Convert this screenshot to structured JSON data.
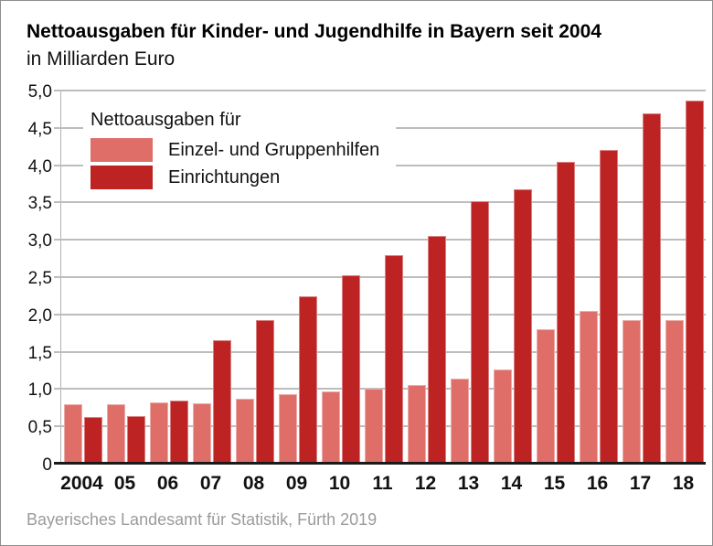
{
  "header": {
    "title": "Nettoausgaben für Kinder- und Jugendhilfe in Bayern seit 2004",
    "subtitle": "in Milliarden Euro"
  },
  "legend": {
    "title": "Nettoausgaben für",
    "items": [
      {
        "label": "Einzel- und Gruppenhilfen",
        "color": "#df6e69"
      },
      {
        "label": "Einrichtungen",
        "color": "#be2323"
      }
    ]
  },
  "source": "Bayerisches Landesamt für Statistik, Fürth 2019",
  "colors": {
    "series_light": "#df6e69",
    "series_dark": "#be2323",
    "gridline": "#bdbdbd",
    "baseline": "#1a1a1a",
    "source_text": "#9b9b9b",
    "frame_border": "#8e8e8e"
  },
  "chart_data": {
    "type": "bar",
    "title": "Nettoausgaben für Kinder- und Jugendhilfe in Bayern seit 2004",
    "unit": "in Milliarden Euro",
    "categories": [
      "2004",
      "05",
      "06",
      "07",
      "08",
      "09",
      "10",
      "11",
      "12",
      "13",
      "14",
      "15",
      "16",
      "17",
      "18"
    ],
    "series": [
      {
        "name": "Einzel- und Gruppenhilfen",
        "color": "#df6e69",
        "values": [
          0.8,
          0.8,
          0.82,
          0.81,
          0.87,
          0.93,
          0.97,
          1.0,
          1.06,
          1.14,
          1.26,
          1.8,
          2.05,
          1.92,
          1.92
        ]
      },
      {
        "name": "Einrichtungen",
        "color": "#be2323",
        "values": [
          0.63,
          0.64,
          0.85,
          1.65,
          1.93,
          2.24,
          2.53,
          2.79,
          3.05,
          3.52,
          3.68,
          4.05,
          4.21,
          4.7,
          4.87
        ]
      }
    ],
    "ylim": [
      0,
      5.0
    ],
    "ytick_step": 0.5,
    "ytick_labels": [
      "0",
      "0,5",
      "1,0",
      "1,5",
      "2,0",
      "2,5",
      "3,0",
      "3,5",
      "4,0",
      "4,5",
      "5,0"
    ],
    "grid": true,
    "legend_position": "top-left",
    "source": "Bayerisches Landesamt für Statistik, Fürth 2019"
  }
}
